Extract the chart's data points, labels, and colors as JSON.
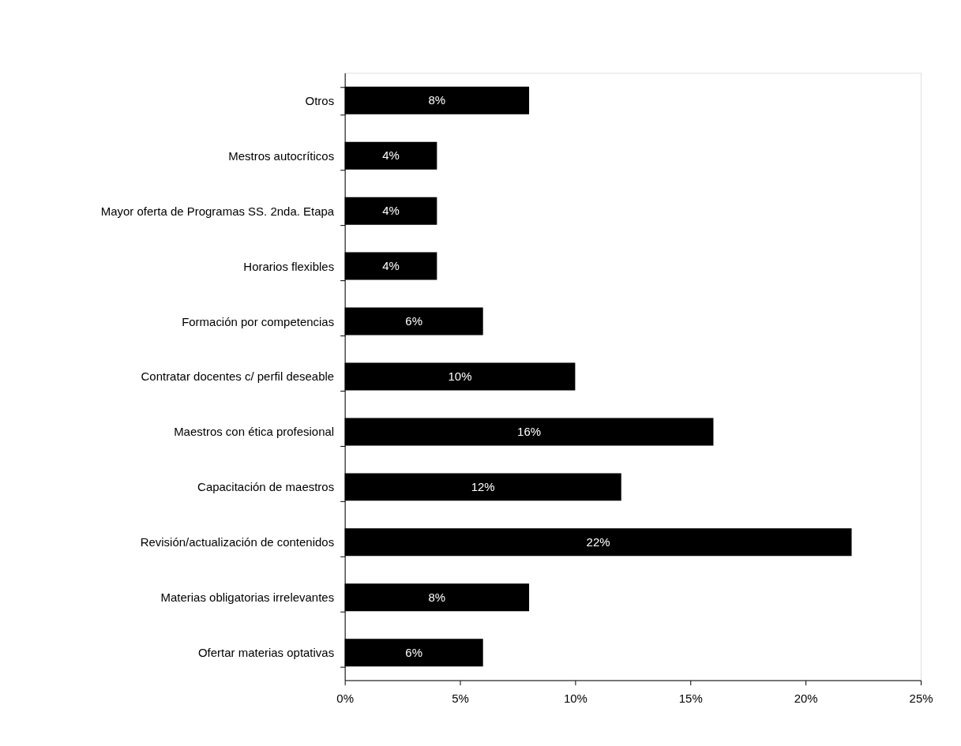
{
  "chart_data": {
    "type": "bar",
    "orientation": "horizontal",
    "categories": [
      "Otros",
      "Mestros autocríticos",
      "Mayor oferta de Programas SS. 2nda. Etapa",
      "Horarios flexibles",
      "Formación por competencias",
      "Contratar docentes c/ perfil deseable",
      "Maestros con ética profesional",
      "Capacitación de maestros",
      "Revisión/actualización de contenidos",
      "Materias obligatorias irrelevantes",
      "Ofertar materias optativas"
    ],
    "values": [
      8,
      4,
      4,
      4,
      6,
      10,
      16,
      12,
      22,
      8,
      6
    ],
    "value_labels": [
      "8%",
      "4%",
      "4%",
      "4%",
      "6%",
      "10%",
      "16%",
      "12%",
      "22%",
      "8%",
      "6%"
    ],
    "color": "#000000",
    "xlim": [
      0,
      25
    ],
    "xticks": [
      {
        "value": 0,
        "label": "0%"
      },
      {
        "value": 5,
        "label": "5%"
      },
      {
        "value": 10,
        "label": "10%"
      },
      {
        "value": 15,
        "label": "15%"
      },
      {
        "value": 20,
        "label": "20%"
      },
      {
        "value": 25,
        "label": "25%"
      }
    ],
    "grid": false
  }
}
